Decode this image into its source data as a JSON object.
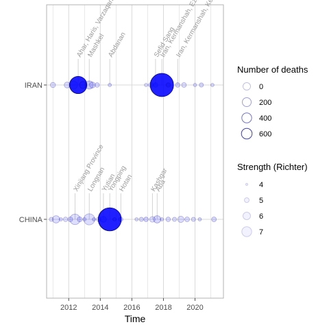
{
  "chart_data": {
    "type": "scatter",
    "xlabel": "Time",
    "xlim": [
      2010.6,
      2021.8
    ],
    "x_ticks": [
      2012,
      2014,
      2016,
      2018,
      2020
    ],
    "categories": [
      "IRAN",
      "CHINA"
    ],
    "colors": {
      "point_fill": "#0000ff",
      "point_stroke": "#00008b",
      "grid": "#d9d9d9",
      "panel_border": "#b3b3b3",
      "annotation": "#9a9a9a"
    },
    "legend_deaths": {
      "title": "Number of deaths",
      "entries": [
        0,
        200,
        400,
        600
      ]
    },
    "legend_strength": {
      "title": "Strength (Richter)",
      "entries": [
        4,
        5,
        6,
        7
      ]
    },
    "series": [
      {
        "country": "IRAN",
        "points": [
          {
            "x": 2011.0,
            "deaths": 5,
            "strength": 5.8
          },
          {
            "x": 2011.9,
            "deaths": 10,
            "strength": 6.0
          },
          {
            "x": 2012.3,
            "deaths": 40,
            "strength": 6.2
          },
          {
            "x": 2012.6,
            "deaths": 306,
            "strength": 6.4
          },
          {
            "x": 2012.9,
            "deaths": 20,
            "strength": 6.3
          },
          {
            "x": 2013.3,
            "deaths": 37,
            "strength": 7.7
          },
          {
            "x": 2013.5,
            "deaths": 10,
            "strength": 6.1
          },
          {
            "x": 2013.8,
            "deaths": 2,
            "strength": 6.0
          },
          {
            "x": 2014.6,
            "deaths": 0,
            "strength": 6.2
          },
          {
            "x": 2016.9,
            "deaths": 0,
            "strength": 5.6
          },
          {
            "x": 2017.2,
            "deaths": 3,
            "strength": 6.1
          },
          {
            "x": 2017.5,
            "deaths": 2,
            "strength": 6.0
          },
          {
            "x": 2017.9,
            "deaths": 630,
            "strength": 7.3
          },
          {
            "x": 2018.3,
            "deaths": 1,
            "strength": 5.9
          },
          {
            "x": 2018.9,
            "deaths": 2,
            "strength": 6.3
          },
          {
            "x": 2019.3,
            "deaths": 3,
            "strength": 5.9
          },
          {
            "x": 2020.0,
            "deaths": 0,
            "strength": 5.7
          },
          {
            "x": 2020.4,
            "deaths": 1,
            "strength": 6.2
          },
          {
            "x": 2021.1,
            "deaths": 0,
            "strength": 6.0
          }
        ],
        "annotations": [
          {
            "x": 2012.6,
            "label": "Ahar, Haris, Varzaqan"
          },
          {
            "x": 2013.3,
            "label": "Mashkel"
          },
          {
            "x": 2014.6,
            "label": "Abdanan"
          },
          {
            "x": 2017.5,
            "label": "Sefid Sang"
          },
          {
            "x": 2017.9,
            "label": "Iran, Kermanshah, Ezgaleh"
          },
          {
            "x": 2018.9,
            "label": "Iran, Kermanshah, Kermanshah"
          }
        ]
      },
      {
        "country": "CHINA",
        "points": [
          {
            "x": 2010.9,
            "deaths": 1,
            "strength": 5.3
          },
          {
            "x": 2011.2,
            "deaths": 25,
            "strength": 5.8
          },
          {
            "x": 2011.5,
            "deaths": 0,
            "strength": 5.9
          },
          {
            "x": 2011.8,
            "deaths": 2,
            "strength": 5.4
          },
          {
            "x": 2012.1,
            "deaths": 3,
            "strength": 5.7
          },
          {
            "x": 2012.4,
            "deaths": 81,
            "strength": 5.6
          },
          {
            "x": 2012.7,
            "deaths": 4,
            "strength": 6.0
          },
          {
            "x": 2013.0,
            "deaths": 0,
            "strength": 5.5
          },
          {
            "x": 2013.3,
            "deaths": 95,
            "strength": 5.9
          },
          {
            "x": 2013.6,
            "deaths": 0,
            "strength": 6.6
          },
          {
            "x": 2013.9,
            "deaths": 2,
            "strength": 5.4
          },
          {
            "x": 2014.2,
            "deaths": 10,
            "strength": 6.1
          },
          {
            "x": 2014.6,
            "deaths": 617,
            "strength": 6.1
          },
          {
            "x": 2014.9,
            "deaths": 0,
            "strength": 6.1
          },
          {
            "x": 2015.3,
            "deaths": 1,
            "strength": 6.4
          },
          {
            "x": 2016.3,
            "deaths": 0,
            "strength": 5.9
          },
          {
            "x": 2016.6,
            "deaths": 1,
            "strength": 6.0
          },
          {
            "x": 2016.9,
            "deaths": 2,
            "strength": 6.9
          },
          {
            "x": 2017.3,
            "deaths": 8,
            "strength": 5.4
          },
          {
            "x": 2017.6,
            "deaths": 25,
            "strength": 6.5
          },
          {
            "x": 2017.9,
            "deaths": 0,
            "strength": 6.1
          },
          {
            "x": 2018.3,
            "deaths": 2,
            "strength": 5.9
          },
          {
            "x": 2018.7,
            "deaths": 1,
            "strength": 5.6
          },
          {
            "x": 2019.1,
            "deaths": 13,
            "strength": 5.8
          },
          {
            "x": 2019.5,
            "deaths": 3,
            "strength": 6.0
          },
          {
            "x": 2019.9,
            "deaths": 1,
            "strength": 5.7
          },
          {
            "x": 2020.3,
            "deaths": 0,
            "strength": 6.3
          },
          {
            "x": 2021.2,
            "deaths": 3,
            "strength": 6.4
          }
        ],
        "annotations": [
          {
            "x": 2012.4,
            "label": "Xinjiang Province"
          },
          {
            "x": 2013.3,
            "label": "Longnan"
          },
          {
            "x": 2014.2,
            "label": "Yutian"
          },
          {
            "x": 2014.6,
            "label": "Yongping"
          },
          {
            "x": 2015.3,
            "label": "Hotan"
          },
          {
            "x": 2017.3,
            "label": "Kashgar"
          },
          {
            "x": 2017.6,
            "label": "Aba"
          }
        ]
      }
    ]
  }
}
